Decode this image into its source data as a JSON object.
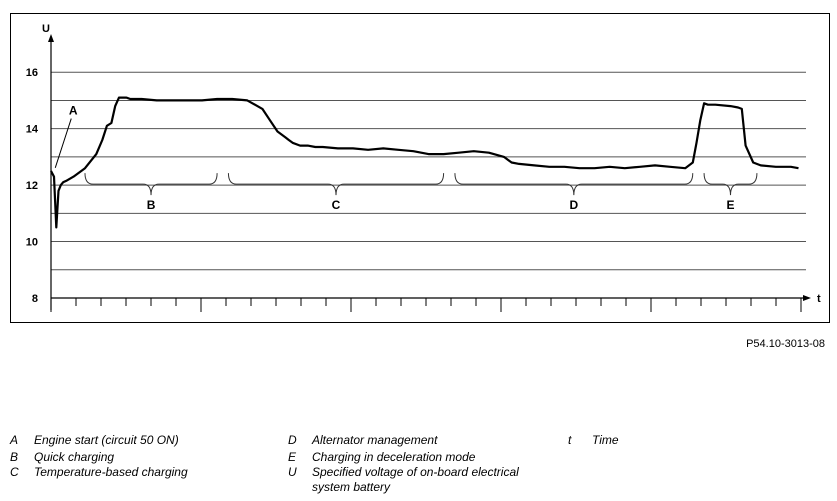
{
  "figure_code": "P54.10-3013-08",
  "chart_data": {
    "type": "line",
    "title": "",
    "xlabel": "t",
    "ylabel": "U",
    "ylim": [
      8,
      17
    ],
    "yticks": [
      8,
      10,
      12,
      14,
      16
    ],
    "y_gridlines": [
      9,
      10,
      11,
      12,
      13,
      14,
      15,
      16
    ],
    "grid": "horizontal",
    "x_range": [
      0,
      100
    ],
    "series": [
      {
        "x": [
          0,
          0.4,
          0.7,
          1,
          1.3,
          1.6,
          2,
          3,
          4.5,
          6,
          6.8,
          7.4,
          8,
          8.5,
          9,
          9.5,
          10,
          10.5,
          12,
          14,
          16,
          18,
          20,
          22,
          24,
          26,
          28,
          29,
          30,
          31,
          31.5,
          32,
          33,
          34,
          35,
          36,
          38,
          40,
          42,
          44,
          46,
          48,
          50,
          52,
          54,
          56,
          58,
          60,
          60.5,
          61,
          62,
          64,
          66,
          68,
          70,
          72,
          74,
          76,
          78,
          80,
          82,
          84,
          84.5,
          85,
          85.5,
          86,
          86.5,
          87,
          88,
          90,
          91,
          91.5,
          92,
          93,
          94,
          96,
          98,
          99
        ],
        "y": [
          12.5,
          12.3,
          10.5,
          11.8,
          12.0,
          12.1,
          12.15,
          12.3,
          12.6,
          13.1,
          13.6,
          14.1,
          14.2,
          14.8,
          15.1,
          15.1,
          15.1,
          15.05,
          15.05,
          15.0,
          15.0,
          15.0,
          15.0,
          15.05,
          15.05,
          15.0,
          14.7,
          14.3,
          13.9,
          13.7,
          13.6,
          13.5,
          13.4,
          13.4,
          13.35,
          13.35,
          13.3,
          13.3,
          13.25,
          13.3,
          13.25,
          13.2,
          13.1,
          13.1,
          13.15,
          13.2,
          13.15,
          13.0,
          12.9,
          12.8,
          12.75,
          12.7,
          12.65,
          12.65,
          12.6,
          12.6,
          12.65,
          12.6,
          12.65,
          12.7,
          12.65,
          12.6,
          12.7,
          12.8,
          13.5,
          14.3,
          14.9,
          14.85,
          14.85,
          14.8,
          14.75,
          14.7,
          13.4,
          12.8,
          12.7,
          12.65,
          12.65,
          12.6
        ]
      }
    ],
    "brackets": [
      {
        "label": "B",
        "x_start": 4.5,
        "x_end": 22
      },
      {
        "label": "C",
        "x_start": 23.5,
        "x_end": 52
      },
      {
        "label": "D",
        "x_start": 53.5,
        "x_end": 85
      },
      {
        "label": "E",
        "x_start": 86.5,
        "x_end": 93.5
      }
    ],
    "annotations": [
      {
        "label": "A",
        "x": 0.3,
        "y": 12.4
      }
    ],
    "x_tick_count": 30
  },
  "legend": [
    {
      "key": "A",
      "text": "Engine start (circuit 50 ON)"
    },
    {
      "key": "B",
      "text": "Quick charging"
    },
    {
      "key": "C",
      "text": "Temperature-based charging"
    },
    {
      "key": "D",
      "text": "Alternator management"
    },
    {
      "key": "E",
      "text": "Charging in deceleration mode"
    },
    {
      "key": "U",
      "text": "Specified voltage of on-board electrical system battery"
    },
    {
      "key": "t",
      "text": "Time"
    }
  ]
}
